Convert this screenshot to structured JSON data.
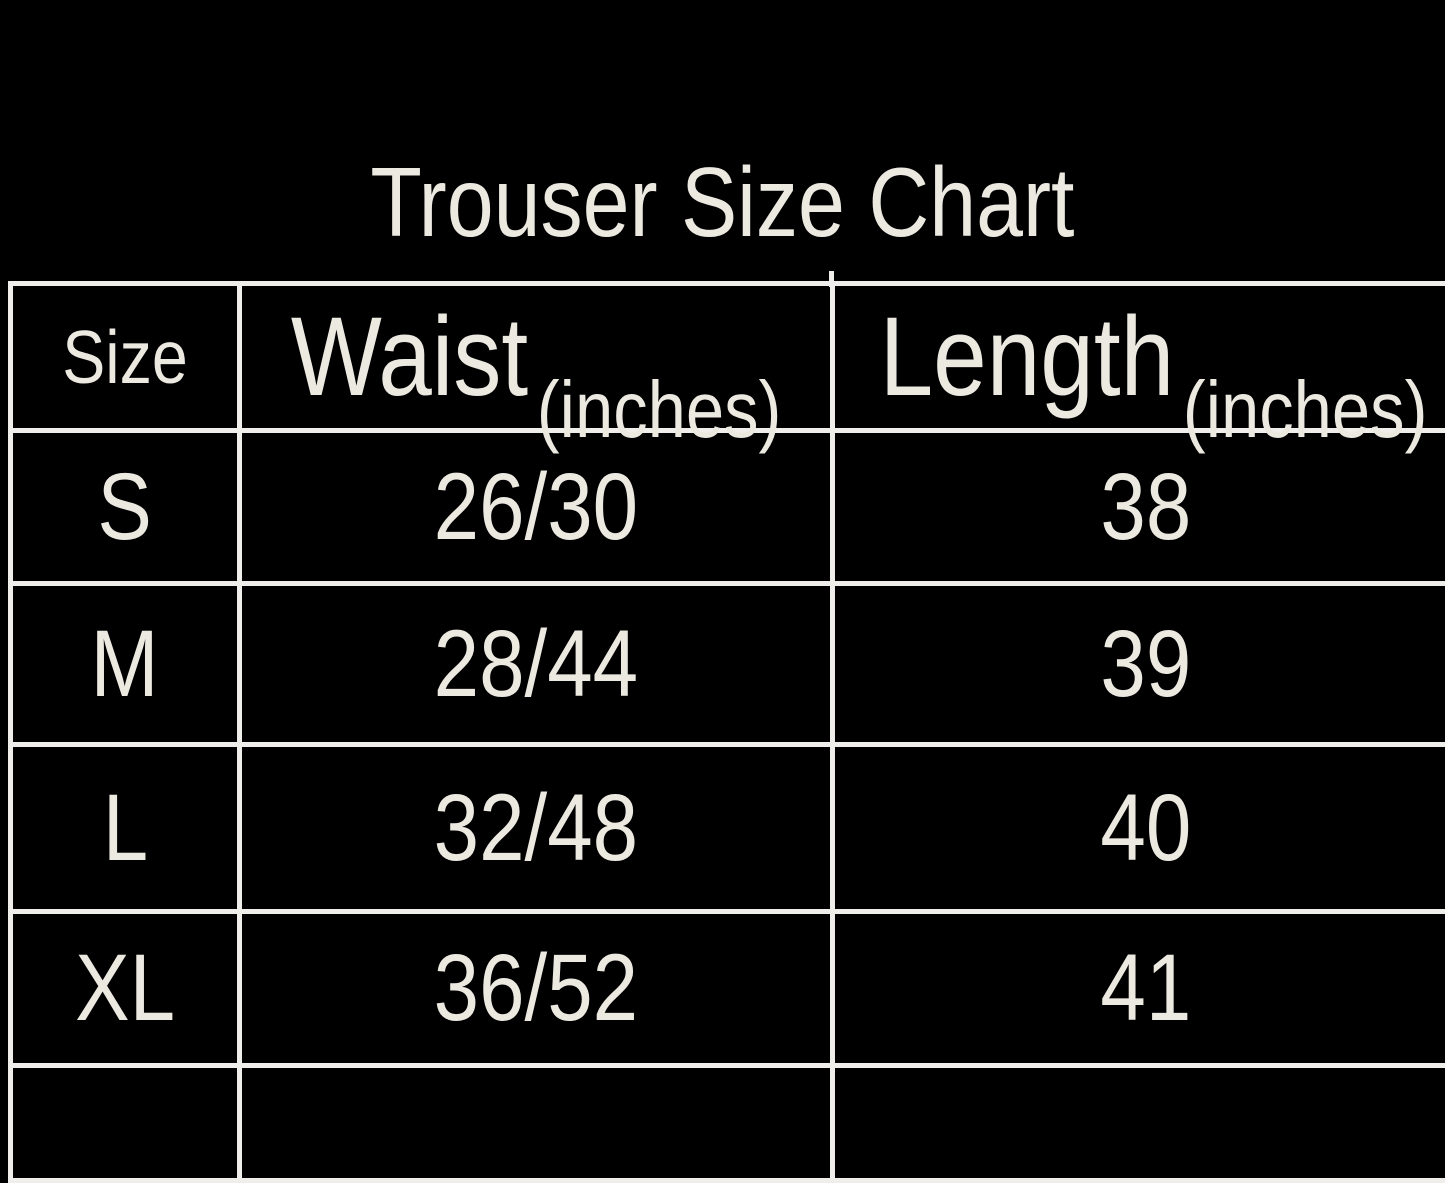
{
  "colors": {
    "background": "#000000",
    "text": "#ECE9E1",
    "line": "#EFEEEA"
  },
  "chart_data": {
    "type": "table",
    "title": "Trouser Size Chart",
    "columns": [
      "Size",
      "Waist (inches)",
      "Length (inches)"
    ],
    "rows": [
      [
        "S",
        "26/30",
        "38"
      ],
      [
        "M",
        "28/44",
        "39"
      ],
      [
        "L",
        "32/48",
        "40"
      ],
      [
        "XL",
        "36/52",
        "41"
      ]
    ]
  },
  "header": {
    "size_label": "Size",
    "waist_label": "Waist",
    "waist_unit": "(inches)",
    "length_label": "Length",
    "length_unit": "(inches)"
  }
}
